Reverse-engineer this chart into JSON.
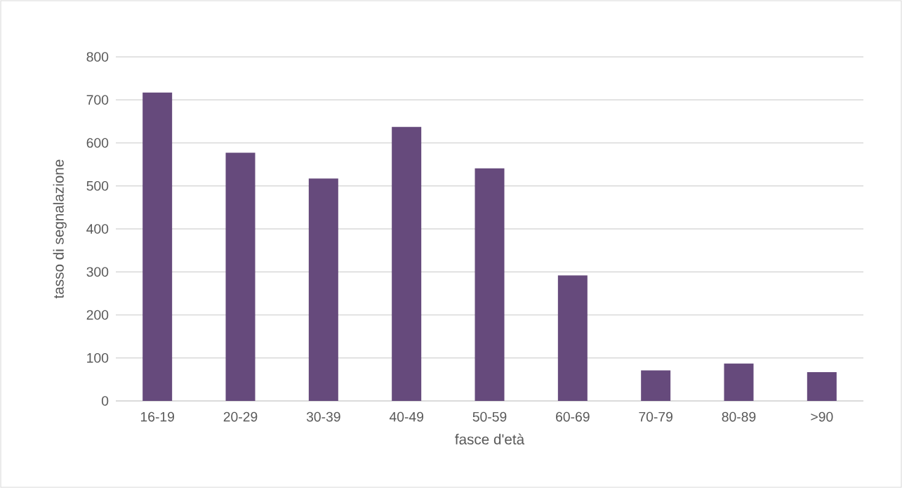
{
  "chart_data": {
    "type": "bar",
    "xlabel": "fasce d'età",
    "ylabel": "tasso di segnalazione",
    "categories": [
      "16-19",
      "20-29",
      "30-39",
      "40-49",
      "50-59",
      "60-69",
      "70-79",
      "80-89",
      ">90"
    ],
    "values": [
      717,
      577,
      517,
      637,
      541,
      292,
      71,
      87,
      67
    ],
    "color": "#664a7c",
    "ylim": [
      0,
      800
    ],
    "yticks": [
      0,
      100,
      200,
      300,
      400,
      500,
      600,
      700,
      800
    ],
    "grid": "y"
  }
}
